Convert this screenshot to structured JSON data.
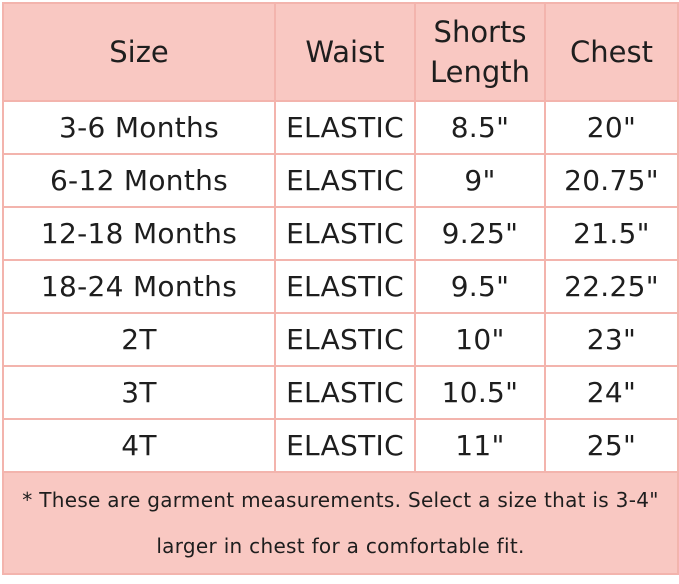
{
  "table": {
    "header": [
      "Size",
      "Waist",
      "Shorts Length",
      "Chest"
    ],
    "rows": [
      [
        "3-6 Months",
        "ELASTIC",
        "8.5\"",
        "20\""
      ],
      [
        "6-12 Months",
        "ELASTIC",
        "9\"",
        "20.75\""
      ],
      [
        "12-18 Months",
        "ELASTIC",
        "9.25\"",
        "21.5\""
      ],
      [
        "18-24 Months",
        "ELASTIC",
        "9.5\"",
        "22.25\""
      ],
      [
        "2T",
        "ELASTIC",
        "10\"",
        "23\""
      ],
      [
        "3T",
        "ELASTIC",
        "10.5\"",
        "24\""
      ],
      [
        "4T",
        "ELASTIC",
        "11\"",
        "25\""
      ]
    ],
    "note": "* These are garment measurements. Select a size that is 3-4\" larger in chest for a comfortable fit."
  }
}
